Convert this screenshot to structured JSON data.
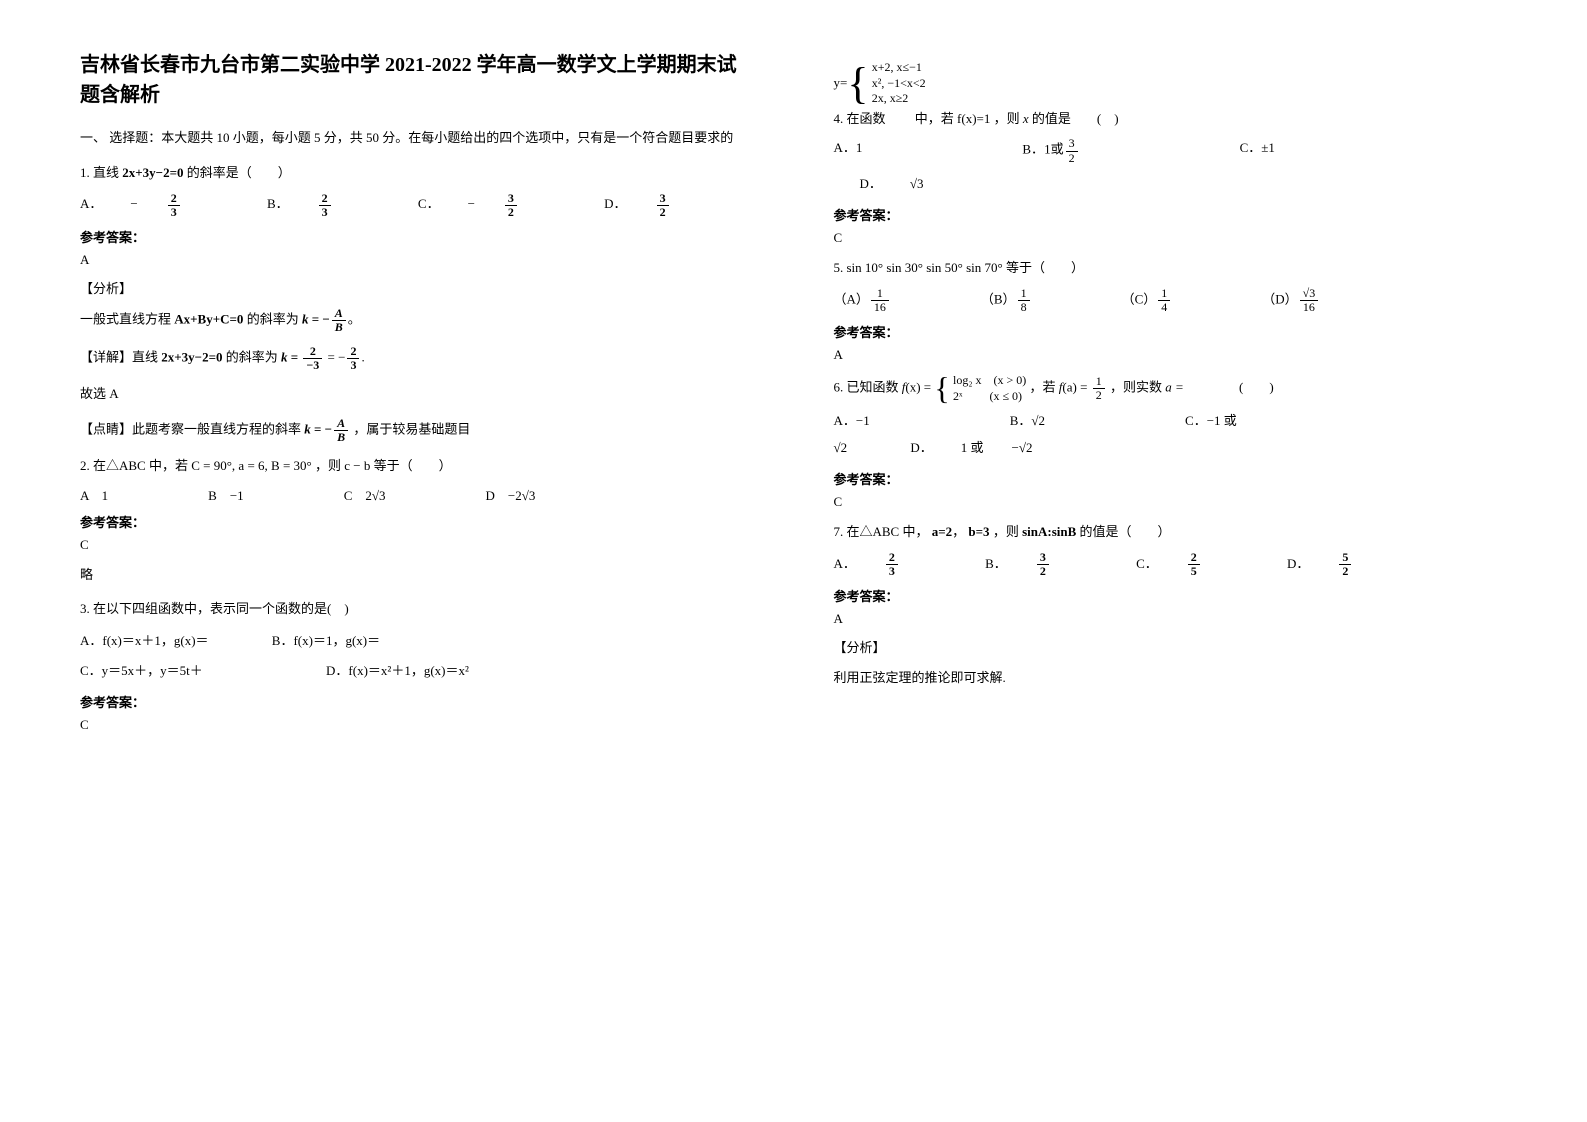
{
  "title": "吉林省长春市九台市第二实验中学 2021-2022 学年高一数学文上学期期末试题含解析",
  "section1": "一、 选择题：本大题共 10 小题，每小题 5 分，共 50 分。在每小题给出的四个选项中，只有是一个符合题目要求的",
  "q1": {
    "stem_a": "1. 直线",
    "expr": "2x+3y−2=0",
    "stem_b": "的斜率是（　　）",
    "opts": {
      "A": "−",
      "B": "",
      "C": "−",
      "D": ""
    },
    "ans_label": "参考答案：",
    "ans": "A",
    "fx_label": "【分析】",
    "line1a": "一般式直线方程",
    "line1b": "Ax+By+C=0",
    "line1c": "的斜率为",
    "jx_label": "【详解】直线",
    "jx_expr": "2x+3y−2=0",
    "jx_tail": "的斜率为",
    "gx": "故选 A",
    "ds_a": "【点睛】此题考察一般直线方程的斜率",
    "ds_b": "，属于较易基础题目"
  },
  "q2": {
    "stem_a": "2. 在△ABC 中，若",
    "expr": "C = 90°, a = 6, B = 30°",
    "stem_b": "，则",
    "expr2": "c − b",
    "stem_c": " 等于（　　）",
    "A": "1",
    "B": "−1",
    "C": "2√3",
    "D": "−2√3",
    "ans_label": "参考答案：",
    "ans": "C",
    "lue": "略"
  },
  "q3": {
    "stem": "3. 在以下四组函数中，表示同一个函数的是(　)",
    "A": "A．f(x)＝x＋1，g(x)＝",
    "B": "B．f(x)＝1，g(x)＝",
    "C": "C．y＝5x＋，y＝5t＋",
    "D": "D．f(x)＝x²＋1，g(x)＝x²",
    "ans_label": "参考答案：",
    "ans": "C"
  },
  "q4": {
    "stem_a": "4. 在函数",
    "stem_b": "中，若",
    "expr_f": "f(x)=1",
    "stem_c": "，则",
    "var": "x",
    "stem_d": "的值是　　(　)",
    "piece1": "x+2,  x≤−1",
    "piece2": "x²,   −1<x<2",
    "piece3": "2x,   x≥2",
    "yprefix": "y=",
    "A": "1",
    "B_pre": "1或",
    "C": "±1",
    "D": "√3",
    "ans_label": "参考答案：",
    "ans": "C"
  },
  "q5": {
    "stem": "5. sin 10° sin 30° sin 50° sin 70° 等于（　　）",
    "ans_label": "参考答案：",
    "ans": "A"
  },
  "q6": {
    "stem_a": "6. 已知函数",
    "piece1": "log₂ x　(x > 0)",
    "piece2": "2ˣ　　 (x ≤ 0)",
    "mid": "，若",
    "tail": "，则实数",
    "avar": "a =",
    "paren": "(　　)",
    "A": "−1",
    "B": "√2",
    "C_pre": "−1 或",
    "Cv": "√2",
    "D_pre": "1 或",
    "Dv": "−√2",
    "ans_label": "参考答案：",
    "ans": "C"
  },
  "q7": {
    "stem_a": "7. 在△ABC 中，",
    "a": "a=2",
    "b": "b=3",
    "mid": "，则",
    "ratio": "sinA:sinB",
    "tail": " 的值是（　　）",
    "ans_label": "参考答案：",
    "ans": "A",
    "fx_label": "【分析】",
    "fx": "利用正弦定理的推论即可求解."
  },
  "labels": {
    "A": "A．",
    "B": "B．",
    "C": "C．",
    "D": "D．",
    "Ap": "（A）",
    "Bp": "（B）",
    "Cp": "（C）",
    "Dp": "（D）"
  }
}
